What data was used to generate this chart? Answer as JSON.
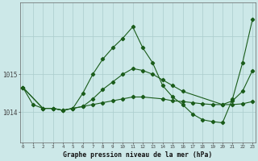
{
  "background_color": "#cce8e8",
  "grid_color": "#aacccc",
  "line_color": "#1a5c1a",
  "title": "Graphe pression niveau de la mer (hPa)",
  "ylabel_ticks": [
    1014,
    1015
  ],
  "ylim": [
    1013.2,
    1016.9
  ],
  "xlim": [
    -0.3,
    23.3
  ],
  "series1_x": [
    0,
    1,
    2,
    3,
    4,
    5,
    6,
    7,
    8,
    9,
    10,
    11,
    12,
    13,
    14,
    15,
    16,
    17,
    18,
    19,
    20,
    21,
    22,
    23
  ],
  "series1_y": [
    1014.65,
    1014.2,
    1014.1,
    1014.1,
    1014.05,
    1014.1,
    1014.5,
    1015.0,
    1015.4,
    1015.7,
    1015.95,
    1016.25,
    1015.7,
    1015.3,
    1014.7,
    1014.4,
    1014.2,
    1013.95,
    1013.8,
    1013.75,
    1013.72,
    1014.35,
    1015.3,
    1016.45
  ],
  "series2_x": [
    0,
    2,
    3,
    4,
    5,
    6,
    7,
    8,
    9,
    10,
    11,
    12,
    14,
    15,
    16,
    17,
    18,
    19,
    20,
    21,
    22,
    23
  ],
  "series2_y": [
    1014.65,
    1014.1,
    1014.1,
    1014.05,
    1014.1,
    1014.15,
    1014.2,
    1014.25,
    1014.3,
    1014.35,
    1014.4,
    1014.4,
    1014.35,
    1014.3,
    1014.28,
    1014.25,
    1014.22,
    1014.2,
    1014.2,
    1014.2,
    1014.22,
    1014.28
  ],
  "series3_x": [
    0,
    2,
    3,
    4,
    5,
    6,
    7,
    8,
    9,
    10,
    11,
    12,
    13,
    14,
    15,
    16,
    20,
    21,
    22,
    23
  ],
  "series3_y": [
    1014.65,
    1014.1,
    1014.1,
    1014.05,
    1014.1,
    1014.15,
    1014.35,
    1014.6,
    1014.8,
    1015.0,
    1015.15,
    1015.1,
    1015.0,
    1014.85,
    1014.7,
    1014.55,
    1014.2,
    1014.3,
    1014.55,
    1015.1
  ]
}
